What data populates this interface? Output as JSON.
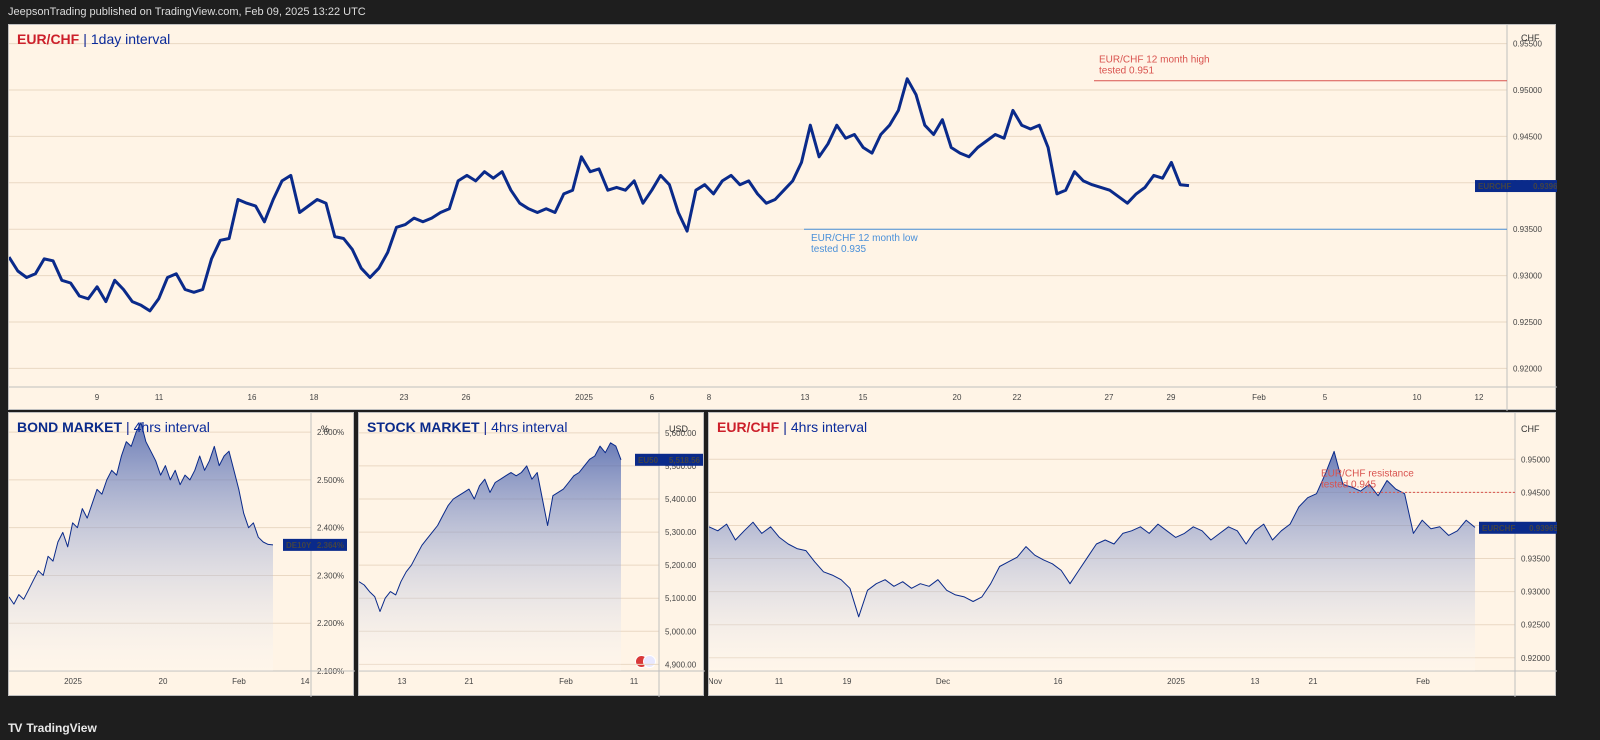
{
  "header": {
    "publish_line": "JeepsonTrading published on TradingView.com, Feb 09, 2025 13:22 UTC"
  },
  "footer": {
    "brand": "TradingView",
    "brand_icon": "tradingview-logo-icon"
  },
  "colors": {
    "line": "#0a2a8a",
    "background": "#fff4e6",
    "high": "#d9534f",
    "low": "#4a90d9",
    "badge": "#0a2a8a"
  },
  "main": {
    "symbol": "EUR/CHF",
    "separator": "|",
    "interval": "1day interval",
    "currency": "CHF",
    "badge_symbol": "EURCHF",
    "badge_value": "0.93965",
    "high_note": [
      "EUR/CHF 12 month high",
      "tested 0.951"
    ],
    "low_note": [
      "EUR/CHF 12 month low",
      "tested 0.935"
    ],
    "y_ticks": [
      "0.95500",
      "0.95000",
      "0.94500",
      "0.94000",
      "0.93500",
      "0.93000",
      "0.92500",
      "0.92000"
    ],
    "x_ticks": [
      "9",
      "11",
      "16",
      "18",
      "23",
      "26",
      "2025",
      "6",
      "8",
      "13",
      "15",
      "20",
      "22",
      "27",
      "29",
      "Feb",
      "5",
      "10",
      "12"
    ]
  },
  "bond": {
    "title": "BOND MARKET",
    "separator": "|",
    "interval": "4hrs interval",
    "currency": "%",
    "badge_symbol": "DE10Y",
    "badge_value": "2.364%",
    "y_ticks": [
      "2.600%",
      "2.500%",
      "2.400%",
      "2.300%",
      "2.200%",
      "2.100%"
    ],
    "x_ticks": [
      "2025",
      "20",
      "Feb",
      "14"
    ]
  },
  "stock": {
    "title": "STOCK MARKET",
    "separator": "|",
    "interval": "4hrs interval",
    "currency": "USD",
    "badge_symbol": "EU50",
    "badge_value": "5,518.56",
    "y_ticks": [
      "5,600.00",
      "5,500.00",
      "5,400.00",
      "5,300.00",
      "5,200.00",
      "5,100.00",
      "5,000.00",
      "4,900.00"
    ],
    "x_ticks": [
      "13",
      "21",
      "Feb",
      "11"
    ]
  },
  "eur4h": {
    "symbol": "EUR/CHF",
    "separator": "|",
    "interval": "4hrs interval",
    "currency": "CHF",
    "badge_symbol": "EURCHF",
    "badge_value": "0.93965",
    "resistance_note": [
      "EUR/CHF resistance",
      "tested 0.945"
    ],
    "y_ticks": [
      "0.95000",
      "0.94500",
      "0.94000",
      "0.93500",
      "0.93000",
      "0.92500",
      "0.92000"
    ],
    "x_ticks": [
      "Nov",
      "11",
      "19",
      "Dec",
      "16",
      "2025",
      "13",
      "21",
      "Feb"
    ]
  },
  "chart_data": [
    {
      "type": "line",
      "title": "EUR/CHF | 1day interval",
      "series": [
        {
          "name": "EURCHF",
          "values": [
            0.932,
            0.9305,
            0.9298,
            0.9302,
            0.9318,
            0.9316,
            0.9295,
            0.9292,
            0.9278,
            0.9275,
            0.9288,
            0.9272,
            0.9295,
            0.9285,
            0.9272,
            0.9268,
            0.9262,
            0.9275,
            0.9298,
            0.9302,
            0.9285,
            0.9282,
            0.9285,
            0.9318,
            0.9338,
            0.934,
            0.9382,
            0.9378,
            0.9375,
            0.9358,
            0.9382,
            0.9402,
            0.9408,
            0.9368,
            0.9375,
            0.9382,
            0.9378,
            0.9342,
            0.934,
            0.9328,
            0.9308,
            0.9298,
            0.9308,
            0.9325,
            0.9352,
            0.9355,
            0.9362,
            0.9358,
            0.9362,
            0.9368,
            0.9372,
            0.9402,
            0.9408,
            0.9402,
            0.9412,
            0.9405,
            0.9412,
            0.9392,
            0.9378,
            0.9372,
            0.9368,
            0.9372,
            0.9368,
            0.9388,
            0.9392,
            0.9428,
            0.9412,
            0.9415,
            0.9392,
            0.9395,
            0.9392,
            0.9402,
            0.9378,
            0.9392,
            0.9408,
            0.9398,
            0.9368,
            0.9348,
            0.9392,
            0.9398,
            0.9388,
            0.9402,
            0.9408,
            0.9398,
            0.9402,
            0.9388,
            0.9378,
            0.9382,
            0.9392,
            0.9402,
            0.9422,
            0.9462,
            0.9428,
            0.9442,
            0.9462,
            0.9448,
            0.9452,
            0.9438,
            0.9432,
            0.9452,
            0.9462,
            0.9478,
            0.9512,
            0.9495,
            0.9462,
            0.9452,
            0.9468,
            0.9438,
            0.9432,
            0.9428,
            0.9438,
            0.9445,
            0.9452,
            0.9448,
            0.9478,
            0.9462,
            0.9458,
            0.9462,
            0.9438,
            0.9388,
            0.9392,
            0.9412,
            0.9402,
            0.9398,
            0.9395,
            0.9392,
            0.9385,
            0.9378,
            0.9388,
            0.9395,
            0.9408,
            0.9405,
            0.9422,
            0.9398,
            0.9397
          ]
        }
      ],
      "x_ticks": [
        "9",
        "11",
        "16",
        "18",
        "23",
        "26",
        "2025",
        "6",
        "8",
        "13",
        "15",
        "20",
        "22",
        "27",
        "29",
        "Feb",
        "5",
        "10",
        "12"
      ],
      "ylim": [
        0.918,
        0.957
      ],
      "annotations": [
        {
          "text": "EUR/CHF 12 month high tested 0.951",
          "y": 0.951
        },
        {
          "text": "EUR/CHF 12 month low tested 0.935",
          "y": 0.935
        }
      ],
      "last_value": 0.93965
    },
    {
      "type": "area",
      "title": "BOND MARKET | 4hrs interval",
      "series": [
        {
          "name": "DE10Y",
          "values": [
            2.255,
            2.24,
            2.26,
            2.25,
            2.27,
            2.29,
            2.31,
            2.3,
            2.34,
            2.33,
            2.37,
            2.39,
            2.36,
            2.41,
            2.4,
            2.44,
            2.42,
            2.45,
            2.48,
            2.47,
            2.5,
            2.52,
            2.51,
            2.55,
            2.58,
            2.57,
            2.6,
            2.62,
            2.58,
            2.56,
            2.54,
            2.51,
            2.53,
            2.5,
            2.52,
            2.49,
            2.51,
            2.5,
            2.52,
            2.55,
            2.52,
            2.54,
            2.57,
            2.53,
            2.55,
            2.56,
            2.52,
            2.48,
            2.43,
            2.4,
            2.41,
            2.38,
            2.37,
            2.365,
            2.364
          ]
        }
      ],
      "x_ticks": [
        "2025",
        "20",
        "Feb",
        "14"
      ],
      "ylim": [
        2.1,
        2.64
      ],
      "last_value": 2.364
    },
    {
      "type": "area",
      "title": "STOCK MARKET | 4hrs interval",
      "series": [
        {
          "name": "EU50",
          "values": [
            5150,
            5140,
            5120,
            5105,
            5060,
            5100,
            5120,
            5110,
            5150,
            5180,
            5200,
            5230,
            5260,
            5280,
            5300,
            5320,
            5350,
            5380,
            5400,
            5410,
            5420,
            5430,
            5400,
            5440,
            5460,
            5420,
            5450,
            5460,
            5470,
            5480,
            5470,
            5480,
            5500,
            5460,
            5480,
            5400,
            5320,
            5410,
            5420,
            5430,
            5450,
            5470,
            5480,
            5500,
            5520,
            5530,
            5560,
            5540,
            5570,
            5560,
            5518.56
          ]
        }
      ],
      "x_ticks": [
        "13",
        "21",
        "Feb",
        "11"
      ],
      "ylim": [
        4880,
        5660
      ],
      "last_value": 5518.56
    },
    {
      "type": "area",
      "title": "EUR/CHF | 4hrs interval",
      "series": [
        {
          "name": "EURCHF",
          "values": [
            0.9398,
            0.9392,
            0.9402,
            0.9378,
            0.9392,
            0.9405,
            0.9388,
            0.9398,
            0.9382,
            0.9372,
            0.9365,
            0.9362,
            0.9345,
            0.933,
            0.9325,
            0.9318,
            0.9305,
            0.9262,
            0.9302,
            0.9312,
            0.9318,
            0.9308,
            0.9315,
            0.9305,
            0.9312,
            0.9308,
            0.9318,
            0.9302,
            0.9295,
            0.9292,
            0.9285,
            0.9292,
            0.9312,
            0.9338,
            0.9345,
            0.9352,
            0.9368,
            0.9355,
            0.9348,
            0.9342,
            0.9332,
            0.9312,
            0.9332,
            0.9352,
            0.9372,
            0.9378,
            0.9372,
            0.9388,
            0.9392,
            0.9398,
            0.9388,
            0.9402,
            0.9392,
            0.9382,
            0.9388,
            0.9398,
            0.9392,
            0.9378,
            0.9388,
            0.9398,
            0.9392,
            0.9372,
            0.9392,
            0.9402,
            0.9378,
            0.9392,
            0.9402,
            0.9428,
            0.9442,
            0.9448,
            0.9478,
            0.9512,
            0.9462,
            0.9458,
            0.9452,
            0.9462,
            0.9445,
            0.9468,
            0.9455,
            0.9448,
            0.9388,
            0.9408,
            0.9395,
            0.9398,
            0.9385,
            0.9392,
            0.9408,
            0.9397
          ]
        }
      ],
      "x_ticks": [
        "Nov",
        "11",
        "19",
        "Dec",
        "16",
        "2025",
        "13",
        "21",
        "Feb"
      ],
      "ylim": [
        0.918,
        0.957
      ],
      "annotations": [
        {
          "text": "EUR/CHF resistance tested 0.945",
          "y": 0.945
        }
      ],
      "last_value": 0.93965
    }
  ]
}
